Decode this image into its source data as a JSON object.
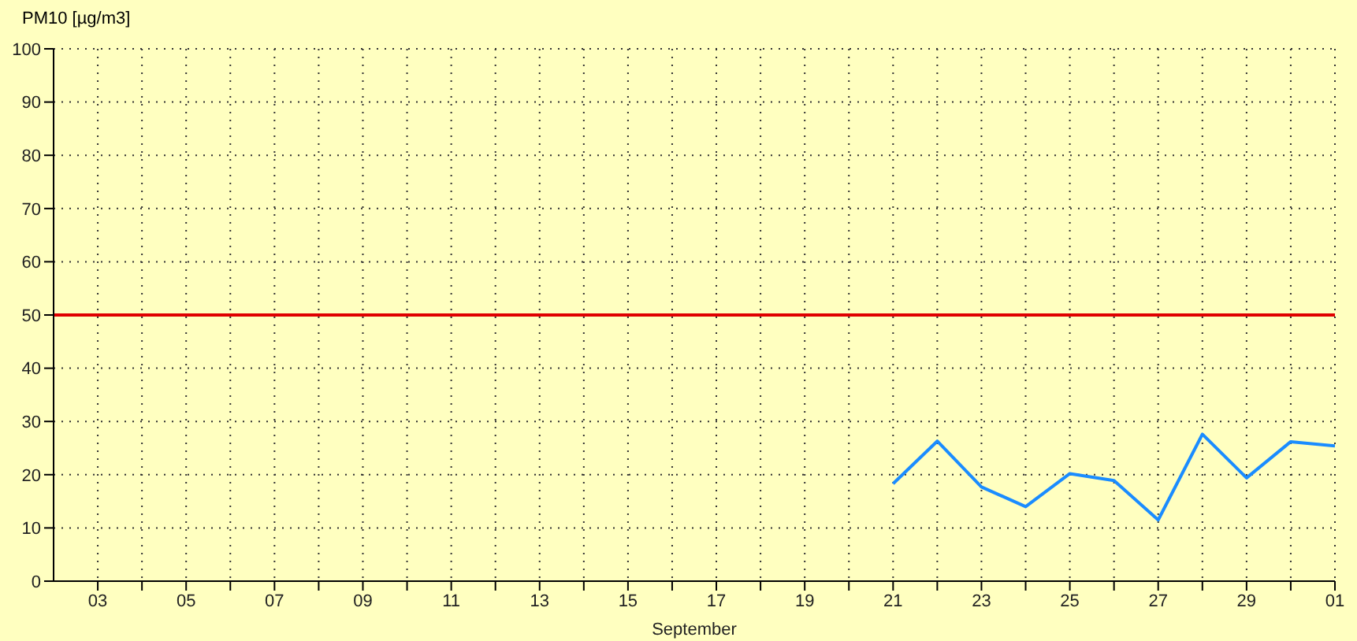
{
  "chart_data": {
    "type": "line",
    "ylabel": "PM10 [µg/m3]",
    "xlabel": "September",
    "series": [
      {
        "color": "#1a8cff",
        "x": [
          "--09-21",
          "--09-22",
          "--09-23",
          "--09-24",
          "--09-25",
          "--09-26",
          "--09-27",
          "--09-28",
          "--09-29",
          "--09-30",
          "--10-01"
        ],
        "values": [
          18.3,
          26.3,
          17.7,
          14.0,
          20.2,
          18.9,
          11.5,
          27.6,
          19.4,
          26.2,
          25.4
        ]
      }
    ],
    "xlim": [
      "--09-02",
      "--10-01"
    ],
    "xticks": [
      {
        "value": "--09-03",
        "label": "03"
      },
      {
        "value": "--09-04",
        "label": null
      },
      {
        "value": "--09-05",
        "label": "05"
      },
      {
        "value": "--09-06",
        "label": null
      },
      {
        "value": "--09-07",
        "label": "07"
      },
      {
        "value": "--09-08",
        "label": null
      },
      {
        "value": "--09-09",
        "label": "09"
      },
      {
        "value": "--09-10",
        "label": null
      },
      {
        "value": "--09-11",
        "label": "11"
      },
      {
        "value": "--09-12",
        "label": null
      },
      {
        "value": "--09-13",
        "label": "13"
      },
      {
        "value": "--09-14",
        "label": null
      },
      {
        "value": "--09-15",
        "label": "15"
      },
      {
        "value": "--09-16",
        "label": null
      },
      {
        "value": "--09-17",
        "label": "17"
      },
      {
        "value": "--09-18",
        "label": null
      },
      {
        "value": "--09-19",
        "label": "19"
      },
      {
        "value": "--09-20",
        "label": null
      },
      {
        "value": "--09-21",
        "label": "21"
      },
      {
        "value": "--09-22",
        "label": null
      },
      {
        "value": "--09-23",
        "label": "23"
      },
      {
        "value": "--09-24",
        "label": null
      },
      {
        "value": "--09-25",
        "label": "25"
      },
      {
        "value": "--09-26",
        "label": null
      },
      {
        "value": "--09-27",
        "label": "27"
      },
      {
        "value": "--09-28",
        "label": null
      },
      {
        "value": "--09-29",
        "label": "29"
      },
      {
        "value": "--09-30",
        "label": null
      },
      {
        "value": "--10-01",
        "label": "01"
      }
    ],
    "ylim": [
      0,
      100
    ],
    "yticks": [
      0,
      10,
      20,
      30,
      40,
      50,
      60,
      70,
      80,
      90,
      100
    ],
    "ref_lines": [
      {
        "axis": "y",
        "value": 50,
        "color": "#e00000"
      }
    ],
    "grid": true,
    "marker": "none",
    "line_style": "solid",
    "legend": false
  }
}
